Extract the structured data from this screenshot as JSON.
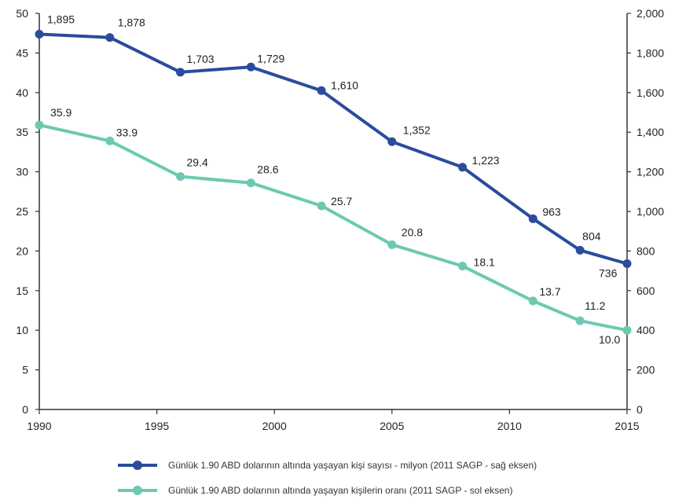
{
  "chart_data": {
    "type": "line",
    "x": [
      1990,
      1993,
      1996,
      1999,
      2002,
      2005,
      2008,
      2011,
      2013,
      2015
    ],
    "xlim": [
      1990,
      2015
    ],
    "x_ticks": [
      "1990",
      "1995",
      "2000",
      "2005",
      "2010",
      "2015"
    ],
    "left_axis": {
      "ylim": [
        0,
        50
      ],
      "ticks": [
        "0",
        "5",
        "10",
        "15",
        "20",
        "25",
        "30",
        "35",
        "40",
        "45",
        "50"
      ]
    },
    "right_axis": {
      "ylim": [
        0,
        2000
      ],
      "ticks": [
        "0",
        "200",
        "400",
        "600",
        "800",
        "1,000",
        "1,200",
        "1,400",
        "1,600",
        "1,800",
        "2,000"
      ]
    },
    "series": [
      {
        "name": "Günlük 1.90 ABD dolarının altında yaşayan kişi sayısı - milyon (2011 SAGP - sağ eksen)",
        "axis": "right",
        "color": "#2b4c9c",
        "values": [
          1895,
          1878,
          1703,
          1729,
          1610,
          1352,
          1223,
          963,
          804,
          736
        ],
        "labels": [
          "1,895",
          "1,878",
          "1,703",
          "1,729",
          "1,610",
          "1,352",
          "1,223",
          "963",
          "804",
          "736"
        ]
      },
      {
        "name": "Günlük 1.90 ABD dolarının altında yaşayan kişilerin oranı (2011 SAGP - sol eksen)",
        "axis": "left",
        "color": "#6cc9b2",
        "values": [
          35.9,
          33.9,
          29.4,
          28.6,
          25.7,
          20.8,
          18.1,
          13.7,
          11.2,
          10.0
        ],
        "labels": [
          "35.9",
          "33.9",
          "29.4",
          "28.6",
          "25.7",
          "20.8",
          "18.1",
          "13.7",
          "11.2",
          "10.0"
        ]
      }
    ],
    "grid": false,
    "legend_position": "bottom"
  }
}
